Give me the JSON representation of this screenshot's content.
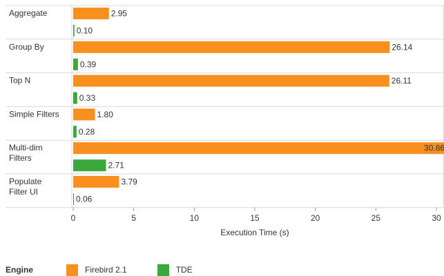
{
  "chart_data": {
    "type": "bar",
    "orientation": "horizontal",
    "categories": [
      [
        "Aggregate"
      ],
      [
        "Group By"
      ],
      [
        "Top N"
      ],
      [
        "Simple Filters"
      ],
      [
        "Multi-dim",
        "Filters"
      ],
      [
        "Populate",
        "Filter UI"
      ]
    ],
    "series": [
      {
        "name": "Firebird 2.1",
        "color": "#f7901e",
        "values": [
          2.95,
          26.14,
          26.11,
          1.8,
          30.86,
          3.79
        ]
      },
      {
        "name": "TDE",
        "color": "#3aa83a",
        "values": [
          0.1,
          0.39,
          0.33,
          0.28,
          2.71,
          0.06
        ]
      }
    ],
    "value_labels": [
      [
        "2.95",
        "26.14",
        "26.11",
        "1.80",
        "30.86",
        "3.79"
      ],
      [
        "0.10",
        "0.39",
        "0.33",
        "0.28",
        "2.71",
        "0.06"
      ]
    ],
    "xlabel": "Execution Time (s)",
    "xlim": [
      0,
      30
    ],
    "xticks": [
      0,
      5,
      10,
      15,
      20,
      25,
      30
    ],
    "legend_title": "Engine",
    "legend_position": "bottom-left",
    "grid": false
  }
}
